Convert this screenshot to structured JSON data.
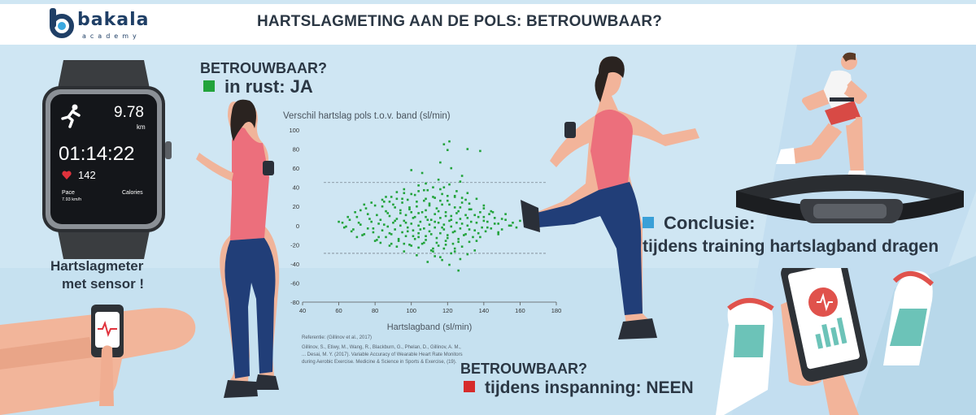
{
  "header": {
    "logo_text": "bakala",
    "logo_subtitle": "academy",
    "title": "HARTSLAGMETING AAN DE POLS: BETROUWBAAR?"
  },
  "watch": {
    "distance_value": "9.78",
    "distance_unit": "km",
    "time": "01:14:22",
    "heart_rate": "142",
    "pace_label": "Pace",
    "pace_value": "7.93 km/h",
    "calories_label": "Calories",
    "caption_line1": "Hartslagmeter",
    "caption_line2": "met sensor !"
  },
  "rest": {
    "heading": "BETROUWBAAR?",
    "text": "in rust: JA",
    "marker_color": "#22a33b"
  },
  "exercise": {
    "heading": "BETROUWBAAR?",
    "text": "tijdens inspanning: NEEN",
    "marker_color": "#d62b2b"
  },
  "conclusion": {
    "line1": "Conclusie:",
    "line2": "tijdens training hartslagband dragen",
    "marker_color": "#3aa0d8"
  },
  "reference": {
    "title": "Referentie: (Gillinov et al., 2017)",
    "body": "Gillinov, S., Etiwy, M., Wang, R., Blackburn, G., Phelan, D., Gillinov, A. M., ... Desai, M. Y. (2017). Variable Accuracy of Wearable Heart Rate Monitors during Aerobic Exercise. Medicine & Science in Sports & Exercise, (19)."
  },
  "chart_data": {
    "type": "scatter",
    "title": "Verschil hartslag pols t.o.v. band (sl/min)",
    "xlabel": "Hartslagband (sl/min)",
    "ylabel": "",
    "xlim": [
      40,
      180
    ],
    "ylim": [
      -80,
      100
    ],
    "xticks": [
      40,
      60,
      80,
      100,
      120,
      140,
      160,
      180
    ],
    "yticks": [
      100,
      80,
      60,
      40,
      20,
      0,
      -20,
      -40,
      -60,
      -80
    ],
    "reference_lines": [
      45,
      -29
    ],
    "point_color": "#22a33b",
    "series": [
      {
        "values": [
          [
            121,
            88
          ],
          [
            118,
            85
          ],
          [
            131,
            80
          ],
          [
            138,
            78
          ],
          [
            120,
            79
          ],
          [
            116,
            66
          ],
          [
            122,
            60
          ],
          [
            100,
            58
          ],
          [
            106,
            55
          ],
          [
            128,
            52
          ],
          [
            115,
            48
          ],
          [
            127,
            46
          ],
          [
            108,
            44
          ],
          [
            121,
            43
          ],
          [
            104,
            42
          ],
          [
            112,
            40
          ],
          [
            96,
            38
          ],
          [
            109,
            37
          ],
          [
            125,
            36
          ],
          [
            131,
            34
          ],
          [
            92,
            35
          ],
          [
            117,
            33
          ],
          [
            102,
            32
          ],
          [
            124,
            30
          ],
          [
            89,
            30
          ],
          [
            113,
            29
          ],
          [
            136,
            28
          ],
          [
            98,
            27
          ],
          [
            107,
            26
          ],
          [
            120,
            26
          ],
          [
            85,
            25
          ],
          [
            128,
            24
          ],
          [
            95,
            24
          ],
          [
            110,
            23
          ],
          [
            117,
            22
          ],
          [
            140,
            21
          ],
          [
            80,
            21
          ],
          [
            103,
            20
          ],
          [
            124,
            19
          ],
          [
            91,
            19
          ],
          [
            114,
            18
          ],
          [
            132,
            17
          ],
          [
            99,
            17
          ],
          [
            108,
            16
          ],
          [
            126,
            15
          ],
          [
            86,
            15
          ],
          [
            119,
            14
          ],
          [
            145,
            14
          ],
          [
            94,
            13
          ],
          [
            104,
            13
          ],
          [
            113,
            12
          ],
          [
            76,
            12
          ],
          [
            130,
            11
          ],
          [
            97,
            11
          ],
          [
            122,
            10
          ],
          [
            88,
            10
          ],
          [
            108,
            9
          ],
          [
            137,
            9
          ],
          [
            70,
            9
          ],
          [
            116,
            8
          ],
          [
            101,
            8
          ],
          [
            92,
            7
          ],
          [
            127,
            7
          ],
          [
            150,
            7
          ],
          [
            83,
            6
          ],
          [
            111,
            6
          ],
          [
            66,
            6
          ],
          [
            121,
            5
          ],
          [
            96,
            5
          ],
          [
            140,
            5
          ],
          [
            105,
            4
          ],
          [
            78,
            4
          ],
          [
            133,
            4
          ],
          [
            115,
            3
          ],
          [
            90,
            3
          ],
          [
            62,
            3
          ],
          [
            125,
            3
          ],
          [
            100,
            2
          ],
          [
            146,
            2
          ],
          [
            82,
            2
          ],
          [
            110,
            1
          ],
          [
            118,
            1
          ],
          [
            72,
            1
          ],
          [
            131,
            0
          ],
          [
            94,
            0
          ],
          [
            155,
            0
          ],
          [
            104,
            0
          ],
          [
            64,
            -1
          ],
          [
            122,
            -1
          ],
          [
            87,
            -1
          ],
          [
            113,
            -2
          ],
          [
            142,
            -2
          ],
          [
            98,
            -2
          ],
          [
            76,
            -3
          ],
          [
            127,
            -3
          ],
          [
            107,
            -3
          ],
          [
            91,
            -4
          ],
          [
            118,
            -4
          ],
          [
            68,
            -4
          ],
          [
            135,
            -5
          ],
          [
            101,
            -5
          ],
          [
            84,
            -5
          ],
          [
            124,
            -6
          ],
          [
            110,
            -6
          ],
          [
            95,
            -7
          ],
          [
            148,
            -7
          ],
          [
            79,
            -7
          ],
          [
            116,
            -8
          ],
          [
            104,
            -8
          ],
          [
            130,
            -9
          ],
          [
            89,
            -9
          ],
          [
            120,
            -10
          ],
          [
            73,
            -10
          ],
          [
            108,
            -11
          ],
          [
            97,
            -11
          ],
          [
            138,
            -12
          ],
          [
            86,
            -12
          ],
          [
            114,
            -13
          ],
          [
            126,
            -14
          ],
          [
            102,
            -14
          ],
          [
            81,
            -15
          ],
          [
            119,
            -16
          ],
          [
            93,
            -16
          ],
          [
            132,
            -17
          ],
          [
            107,
            -18
          ],
          [
            123,
            -19
          ],
          [
            99,
            -20
          ],
          [
            115,
            -21
          ],
          [
            88,
            -21
          ],
          [
            128,
            -22
          ],
          [
            104,
            -23
          ],
          [
            118,
            -24
          ],
          [
            111,
            -26
          ],
          [
            135,
            -26
          ],
          [
            96,
            -27
          ],
          [
            122,
            -29
          ],
          [
            103,
            -31
          ],
          [
            116,
            -33
          ],
          [
            127,
            -35
          ],
          [
            109,
            -38
          ],
          [
            121,
            -41
          ],
          [
            126,
            -47
          ],
          [
            113,
            -32
          ],
          [
            131,
            -30
          ],
          [
            124,
            -27
          ],
          [
            117,
            -36
          ],
          [
            119,
            -20
          ],
          [
            106,
            -19
          ],
          [
            112,
            -24
          ],
          [
            60,
            4
          ],
          [
            63,
            -2
          ],
          [
            65,
            9
          ],
          [
            67,
            -6
          ],
          [
            69,
            14
          ],
          [
            71,
            3
          ],
          [
            74,
            -9
          ],
          [
            75,
            18
          ],
          [
            77,
            7
          ],
          [
            79,
            -3
          ],
          [
            81,
            11
          ],
          [
            82,
            -12
          ],
          [
            84,
            20
          ],
          [
            85,
            1
          ],
          [
            87,
            13
          ],
          [
            88,
            -8
          ],
          [
            90,
            22
          ],
          [
            91,
            5
          ],
          [
            93,
            -14
          ],
          [
            94,
            16
          ],
          [
            95,
            28
          ],
          [
            97,
            3
          ],
          [
            98,
            -6
          ],
          [
            99,
            19
          ],
          [
            100,
            33
          ],
          [
            101,
            -11
          ],
          [
            102,
            9
          ],
          [
            103,
            25
          ],
          [
            105,
            -4
          ],
          [
            106,
            14
          ],
          [
            107,
            37
          ],
          [
            108,
            -15
          ],
          [
            109,
            6
          ],
          [
            110,
            21
          ],
          [
            111,
            -9
          ],
          [
            112,
            30
          ],
          [
            113,
            4
          ],
          [
            114,
            -18
          ],
          [
            115,
            15
          ],
          [
            116,
            26
          ],
          [
            117,
            -2
          ],
          [
            118,
            40
          ],
          [
            119,
            10
          ],
          [
            120,
            -13
          ],
          [
            121,
            22
          ],
          [
            122,
            6
          ],
          [
            123,
            -7
          ],
          [
            124,
            31
          ],
          [
            125,
            13
          ],
          [
            126,
            -17
          ],
          [
            127,
            19
          ],
          [
            128,
            2
          ],
          [
            129,
            -10
          ],
          [
            130,
            27
          ],
          [
            131,
            8
          ],
          [
            132,
            -4
          ],
          [
            133,
            17
          ],
          [
            134,
            -12
          ],
          [
            135,
            11
          ],
          [
            136,
            3
          ],
          [
            137,
            -8
          ],
          [
            138,
            14
          ],
          [
            139,
            -2
          ],
          [
            140,
            9
          ],
          [
            141,
            -6
          ],
          [
            142,
            4
          ],
          [
            143,
            12
          ],
          [
            144,
            -3
          ],
          [
            146,
            8
          ],
          [
            148,
            2
          ],
          [
            150,
            -4
          ],
          [
            152,
            6
          ],
          [
            154,
            0
          ],
          [
            156,
            3
          ],
          [
            158,
            -2
          ],
          [
            160,
            5
          ],
          [
            72,
            16
          ],
          [
            78,
            24
          ],
          [
            83,
            -18
          ],
          [
            86,
            30
          ],
          [
            89,
            -19
          ],
          [
            92,
            -22
          ],
          [
            96,
            34
          ],
          [
            100,
            -21
          ],
          [
            104,
            36
          ],
          [
            108,
            28
          ],
          [
            112,
            -27
          ],
          [
            116,
            38
          ],
          [
            120,
            31
          ],
          [
            124,
            -24
          ],
          [
            128,
            29
          ],
          [
            132,
            23
          ],
          [
            136,
            -16
          ],
          [
            140,
            18
          ],
          [
            144,
            15
          ],
          [
            148,
            -9
          ],
          [
            152,
            12
          ],
          [
            70,
            -12
          ],
          [
            74,
            22
          ],
          [
            80,
            -16
          ],
          [
            84,
            27
          ],
          [
            88,
            25
          ],
          [
            92,
            28
          ],
          [
            96,
            -19
          ],
          [
            100,
            14
          ],
          [
            104,
            -12
          ]
        ]
      }
    ]
  }
}
